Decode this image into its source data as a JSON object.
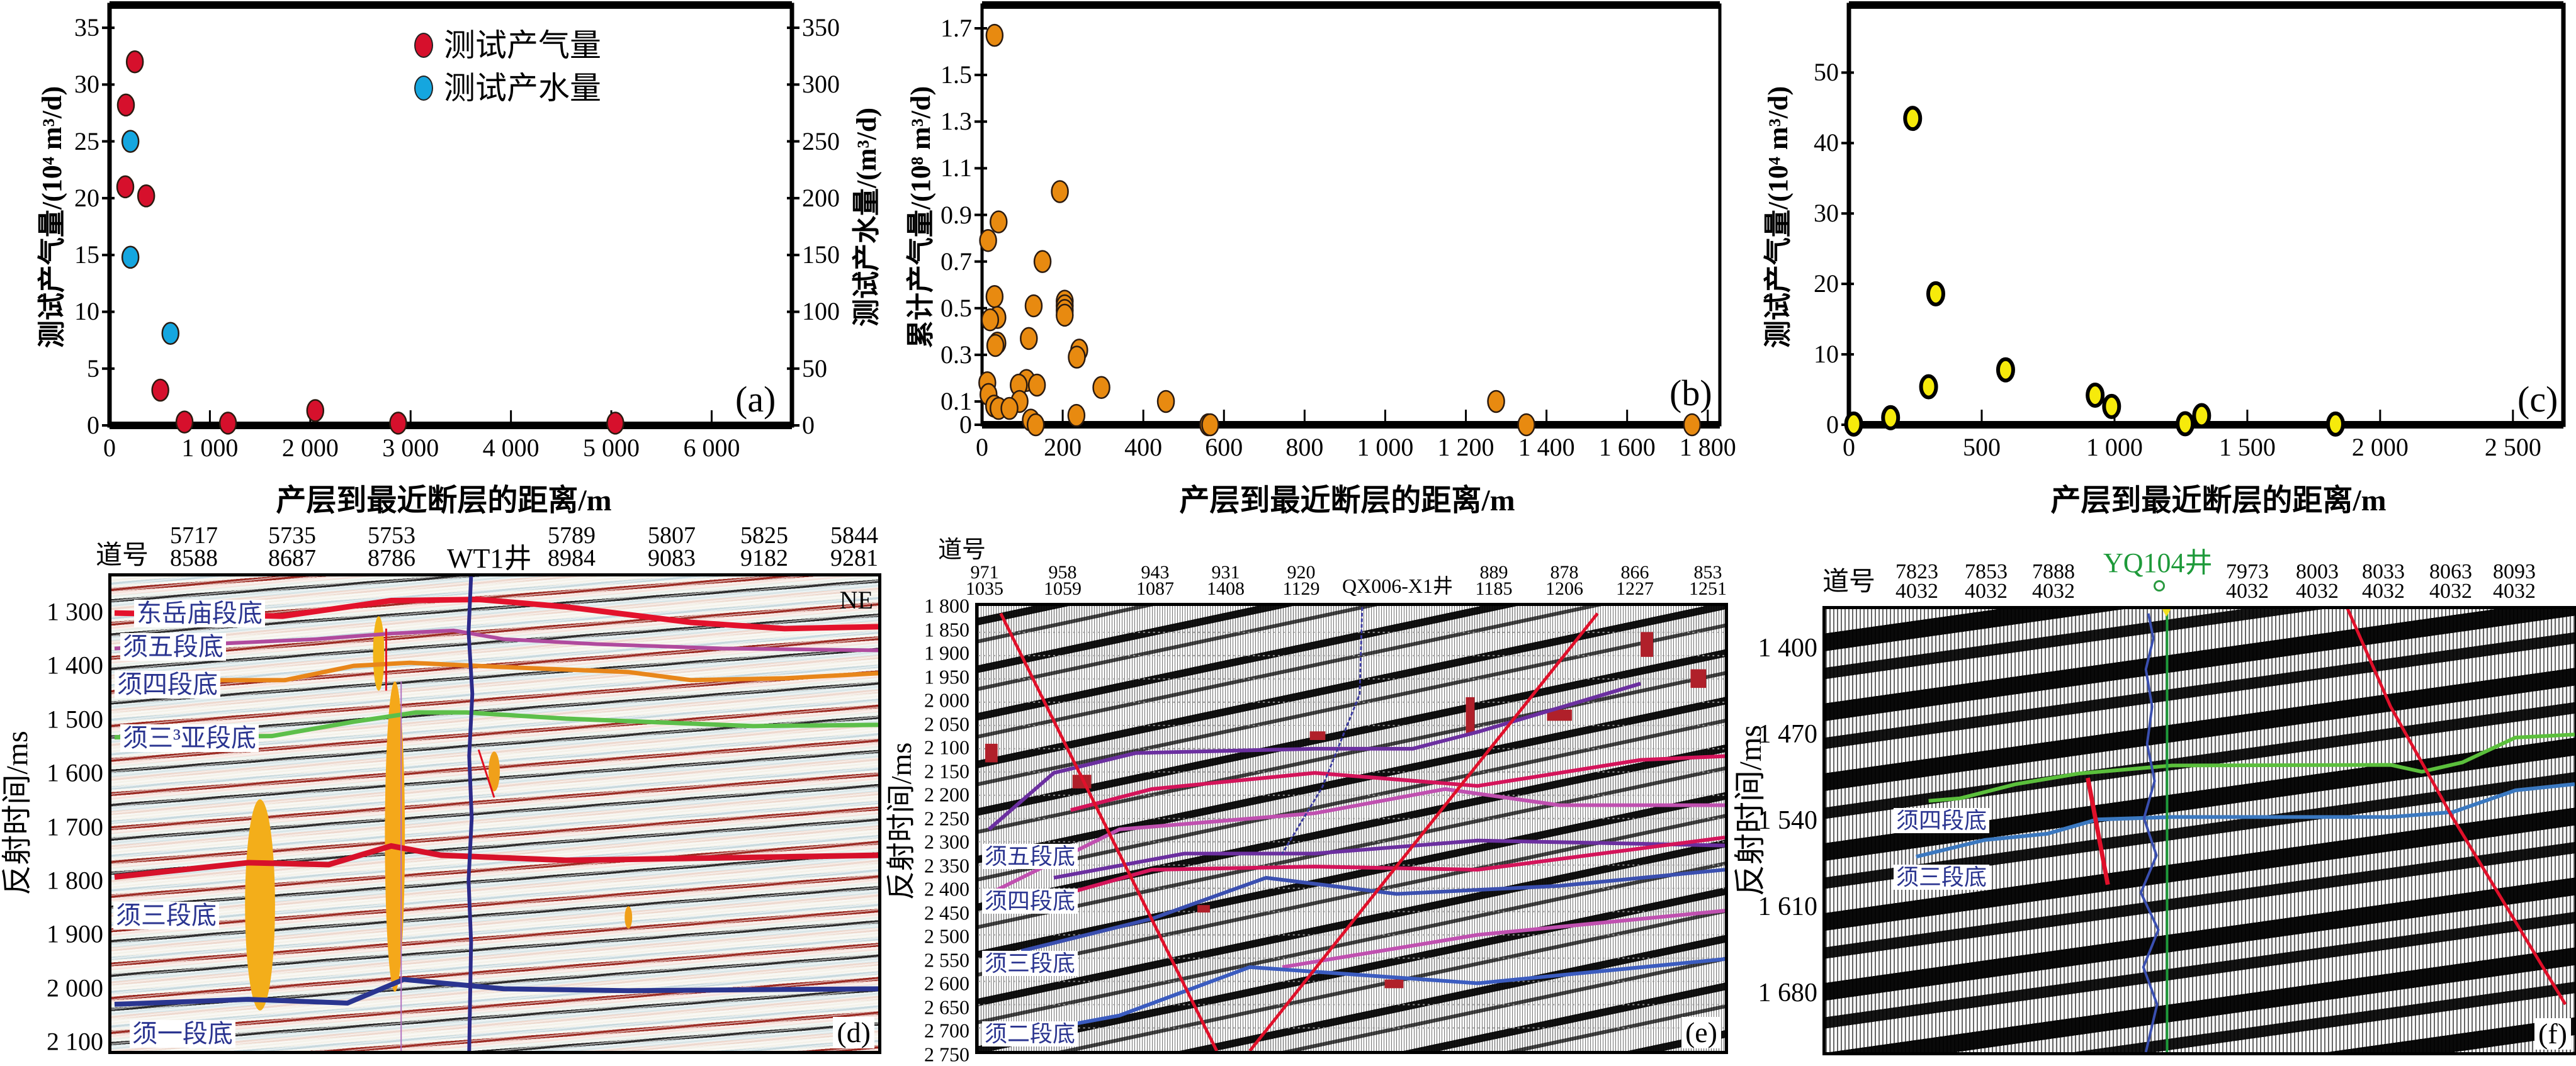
{
  "chart_data": [
    {
      "type": "scatter",
      "panel_label": "(a)",
      "xlabel": "产层到最近断层的距离/m",
      "ylabel": "测试产气量/(10⁴ m³/d)",
      "y2label": "测试产水量/(m³/d)",
      "xlim": [
        0,
        6800
      ],
      "ylim": [
        0,
        37
      ],
      "y2lim": [
        0,
        370
      ],
      "x_ticks": [
        0,
        1000,
        2000,
        3000,
        4000,
        5000,
        6000
      ],
      "x_tick_labels": [
        "0",
        "1 000",
        "2 000",
        "3 000",
        "4 000",
        "5 000",
        "6 000"
      ],
      "y_ticks": [
        0,
        5,
        10,
        15,
        20,
        25,
        30,
        35
      ],
      "y_tick_labels": [
        "0",
        "5",
        "10",
        "15",
        "20",
        "25",
        "30",
        "35"
      ],
      "y2_ticks": [
        0,
        50,
        100,
        150,
        200,
        250,
        300,
        350
      ],
      "y2_tick_labels": [
        "0",
        "50",
        "100",
        "150",
        "200",
        "250",
        "300",
        "350"
      ],
      "legend_position": "top-center",
      "grid": false,
      "series": [
        {
          "name": "测试产气量",
          "color": "#d6102c",
          "axis": "left",
          "points": [
            [
              163,
              28.2
            ],
            [
              252,
              32.0
            ],
            [
              157,
              21.0
            ],
            [
              365,
              20.2
            ],
            [
              506,
              3.1
            ],
            [
              747,
              0.3
            ],
            [
              1180,
              0.2
            ],
            [
              2050,
              1.3
            ],
            [
              2876,
              0.2
            ],
            [
              5040,
              0.2
            ]
          ]
        },
        {
          "name": "测试产水量",
          "color": "#15a6df",
          "axis": "right",
          "points": [
            [
              208,
              250
            ],
            [
              208,
              148
            ],
            [
              607,
              81
            ]
          ]
        }
      ]
    },
    {
      "type": "scatter",
      "panel_label": "(b)",
      "xlabel": "产层到最近断层的距离/m",
      "ylabel": "累计产气量/(10⁸ m³/d)",
      "xlim": [
        0,
        1830
      ],
      "ylim": [
        0,
        1.8
      ],
      "x_ticks": [
        0,
        200,
        400,
        600,
        800,
        1000,
        1200,
        1400,
        1600,
        1800
      ],
      "x_tick_labels": [
        "0",
        "200",
        "400",
        "600",
        "800",
        "1 000",
        "1 200",
        "1 400",
        "1 600",
        "1 800"
      ],
      "y_ticks": [
        0,
        0.1,
        0.3,
        0.5,
        0.7,
        0.9,
        1.1,
        1.3,
        1.5,
        1.7
      ],
      "y_tick_labels": [
        "0",
        "0.1",
        "0.3",
        "0.5",
        "0.7",
        "0.9",
        "1.1",
        "1.3",
        "1.5",
        "1.7"
      ],
      "grid": false,
      "series": [
        {
          "color": "#e88a10",
          "axis": "left",
          "points": [
            [
              31,
              1.67
            ],
            [
              193,
              1.0
            ],
            [
              41,
              0.87
            ],
            [
              15,
              0.79
            ],
            [
              150,
              0.7
            ],
            [
              31,
              0.55
            ],
            [
              128,
              0.51
            ],
            [
              38,
              0.46
            ],
            [
              20,
              0.45
            ],
            [
              205,
              0.53
            ],
            [
              205,
              0.51
            ],
            [
              205,
              0.49
            ],
            [
              205,
              0.47
            ],
            [
              116,
              0.37
            ],
            [
              38,
              0.35
            ],
            [
              33,
              0.34
            ],
            [
              241,
              0.32
            ],
            [
              235,
              0.29
            ],
            [
              13,
              0.18
            ],
            [
              16,
              0.13
            ],
            [
              110,
              0.19
            ],
            [
              136,
              0.17
            ],
            [
              91,
              0.17
            ],
            [
              296,
              0.16
            ],
            [
              93,
              0.1
            ],
            [
              30,
              0.08
            ],
            [
              41,
              0.07
            ],
            [
              68,
              0.07
            ],
            [
              456,
              0.1
            ],
            [
              234,
              0.04
            ],
            [
              121,
              0.02
            ],
            [
              133,
              0.0
            ],
            [
              561,
              0.0
            ],
            [
              566,
              0.0
            ],
            [
              1275,
              0.1
            ],
            [
              1350,
              0.0
            ],
            [
              1761,
              0.0
            ]
          ]
        }
      ]
    },
    {
      "type": "scatter",
      "panel_label": "(c)",
      "xlabel": "产层到最近断层的距离/m",
      "ylabel": "测试产气量/(10⁴ m³/d)",
      "xlim": [
        0,
        2690
      ],
      "ylim": [
        0,
        59.6
      ],
      "x_ticks": [
        0,
        500,
        1000,
        1500,
        2000,
        2500
      ],
      "x_tick_labels": [
        "0",
        "500",
        "1 000",
        "1 500",
        "2 000",
        "2 500"
      ],
      "y_ticks": [
        0,
        10,
        20,
        30,
        40,
        50
      ],
      "y_tick_labels": [
        "0",
        "10",
        "20",
        "30",
        "40",
        "50"
      ],
      "grid": false,
      "series": [
        {
          "color": "#f6ea0b",
          "axis": "left",
          "points": [
            [
              18,
              0.1
            ],
            [
              157,
              1.0
            ],
            [
              240,
              43.5
            ],
            [
              300,
              5.4
            ],
            [
              327,
              18.6
            ],
            [
              590,
              7.8
            ],
            [
              927,
              4.2
            ],
            [
              989,
              2.6
            ],
            [
              1266,
              0.15
            ],
            [
              1328,
              1.3
            ],
            [
              1832,
              0.1
            ]
          ]
        }
      ]
    }
  ],
  "seismic": {
    "d": {
      "panel_label": "(d)",
      "trace_header": "道号",
      "traces": [
        [
          "5717",
          "8588"
        ],
        [
          "5735",
          "8687"
        ],
        [
          "5753",
          "8786"
        ],
        [
          "5789",
          "8984"
        ],
        [
          "5807",
          "9083"
        ],
        [
          "5825",
          "9182"
        ],
        [
          "5844",
          "9281"
        ]
      ],
      "well": "WT1井",
      "direction": "NE",
      "y_title": "反射时间/ms",
      "y_ticks": [
        "1 300",
        "1 400",
        "1 500",
        "1 600",
        "1 700",
        "1 800",
        "1 900",
        "2 000",
        "2 100"
      ],
      "horizons": [
        {
          "name": "东岳庙段底",
          "color": "#e3122c"
        },
        {
          "name": "须五段底",
          "color": "#b04a9e"
        },
        {
          "name": "须四段底",
          "color": "#e8861a"
        },
        {
          "name": "须三³亚段底",
          "color": "#5cbf4a"
        },
        {
          "name": "须三段底",
          "color": "#d7112a"
        },
        {
          "name": "须一段底",
          "color": "#2a3590"
        }
      ]
    },
    "e": {
      "panel_label": "(e)",
      "trace_header": "道号",
      "traces": [
        [
          "971",
          "1035"
        ],
        [
          "958",
          "1059"
        ],
        [
          "943",
          "1087"
        ],
        [
          "931",
          "1408"
        ],
        [
          "920",
          "1129"
        ],
        [
          "889",
          "1185"
        ],
        [
          "878",
          "1206"
        ],
        [
          "866",
          "1227"
        ],
        [
          "853",
          "1251"
        ]
      ],
      "well": "QX006-X1井",
      "y_title": "反射时间/ms",
      "y_ticks": [
        "1 800",
        "1 850",
        "1 900",
        "1 950",
        "2 000",
        "2 050",
        "2 100",
        "2 150",
        "2 200",
        "2 250",
        "2 300",
        "2 350",
        "2 400",
        "2 450",
        "2 500",
        "2 550",
        "2 600",
        "2 650",
        "2 700",
        "2 750"
      ],
      "horizons": [
        {
          "name": "须五段底",
          "color": "#6b2fa0"
        },
        {
          "name": "须四段底",
          "color": "#d4145a"
        },
        {
          "name": "须三段底",
          "color": "#3a4fb0"
        },
        {
          "name": "须二段底",
          "color": "#3b5cc0"
        }
      ]
    },
    "f": {
      "panel_label": "(f)",
      "trace_header": "道号",
      "traces": [
        [
          "7823",
          "4032"
        ],
        [
          "7853",
          "4032"
        ],
        [
          "7888",
          "4032"
        ],
        [
          "7973",
          "4032"
        ],
        [
          "8003",
          "4032"
        ],
        [
          "8033",
          "4032"
        ],
        [
          "8063",
          "4032"
        ],
        [
          "8093",
          "4032"
        ]
      ],
      "well": "YQ104井",
      "well_color": "#1e9a3a",
      "y_title": "反射时间/ms",
      "y_ticks": [
        "1 400",
        "1 470",
        "1 540",
        "1 610",
        "1 680"
      ],
      "horizons": [
        {
          "name": "须四段底",
          "color": "#5bbf3c"
        },
        {
          "name": "须三段底",
          "color": "#3a78c0"
        }
      ]
    }
  }
}
